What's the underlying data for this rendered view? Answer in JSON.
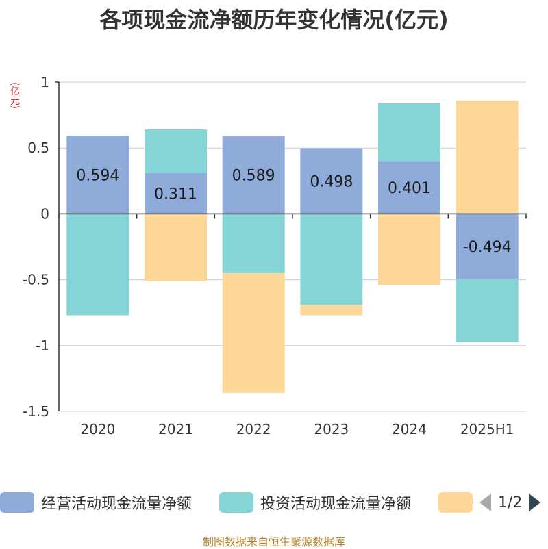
{
  "title": "各项现金流净额历年变化情况(亿元)",
  "unit": "(亿元)",
  "legend": {
    "items": [
      {
        "label": "经营活动现金流量净额",
        "color": "#8eabd9"
      },
      {
        "label": "投资活动现金流量净额",
        "color": "#86d5d6"
      },
      {
        "label": "",
        "color": "#fed898"
      }
    ],
    "page": "1/2"
  },
  "source": "制图数据来自恒生聚源数据库",
  "chart_data": {
    "type": "bar",
    "stacked": true,
    "categories": [
      "2020",
      "2021",
      "2022",
      "2023",
      "2024",
      "2025H1"
    ],
    "ylim": [
      -1.5,
      1
    ],
    "yticks": [
      1,
      0.5,
      0,
      -0.5,
      -1,
      -1.5
    ],
    "ytick_labels": [
      "1",
      "0.5",
      "0",
      "-0.5",
      "-1",
      "-1.5"
    ],
    "series": [
      {
        "name": "经营活动现金流量净额",
        "color": "#8eabd9",
        "values": [
          0.594,
          0.311,
          0.589,
          0.498,
          0.401,
          -0.494
        ],
        "labels": [
          "0.594",
          "0.311",
          "0.589",
          "0.498",
          "0.401",
          "-0.494"
        ]
      },
      {
        "name": "投资活动现金流量净额",
        "color": "#86d5d6",
        "values": [
          -0.77,
          0.33,
          -0.45,
          -0.69,
          0.44,
          -0.48
        ]
      },
      {
        "color": "#fed898",
        "values": [
          0,
          -0.51,
          -0.91,
          -0.08,
          -0.54,
          0.86
        ]
      }
    ],
    "grid": true,
    "legend_position": "bottom"
  }
}
